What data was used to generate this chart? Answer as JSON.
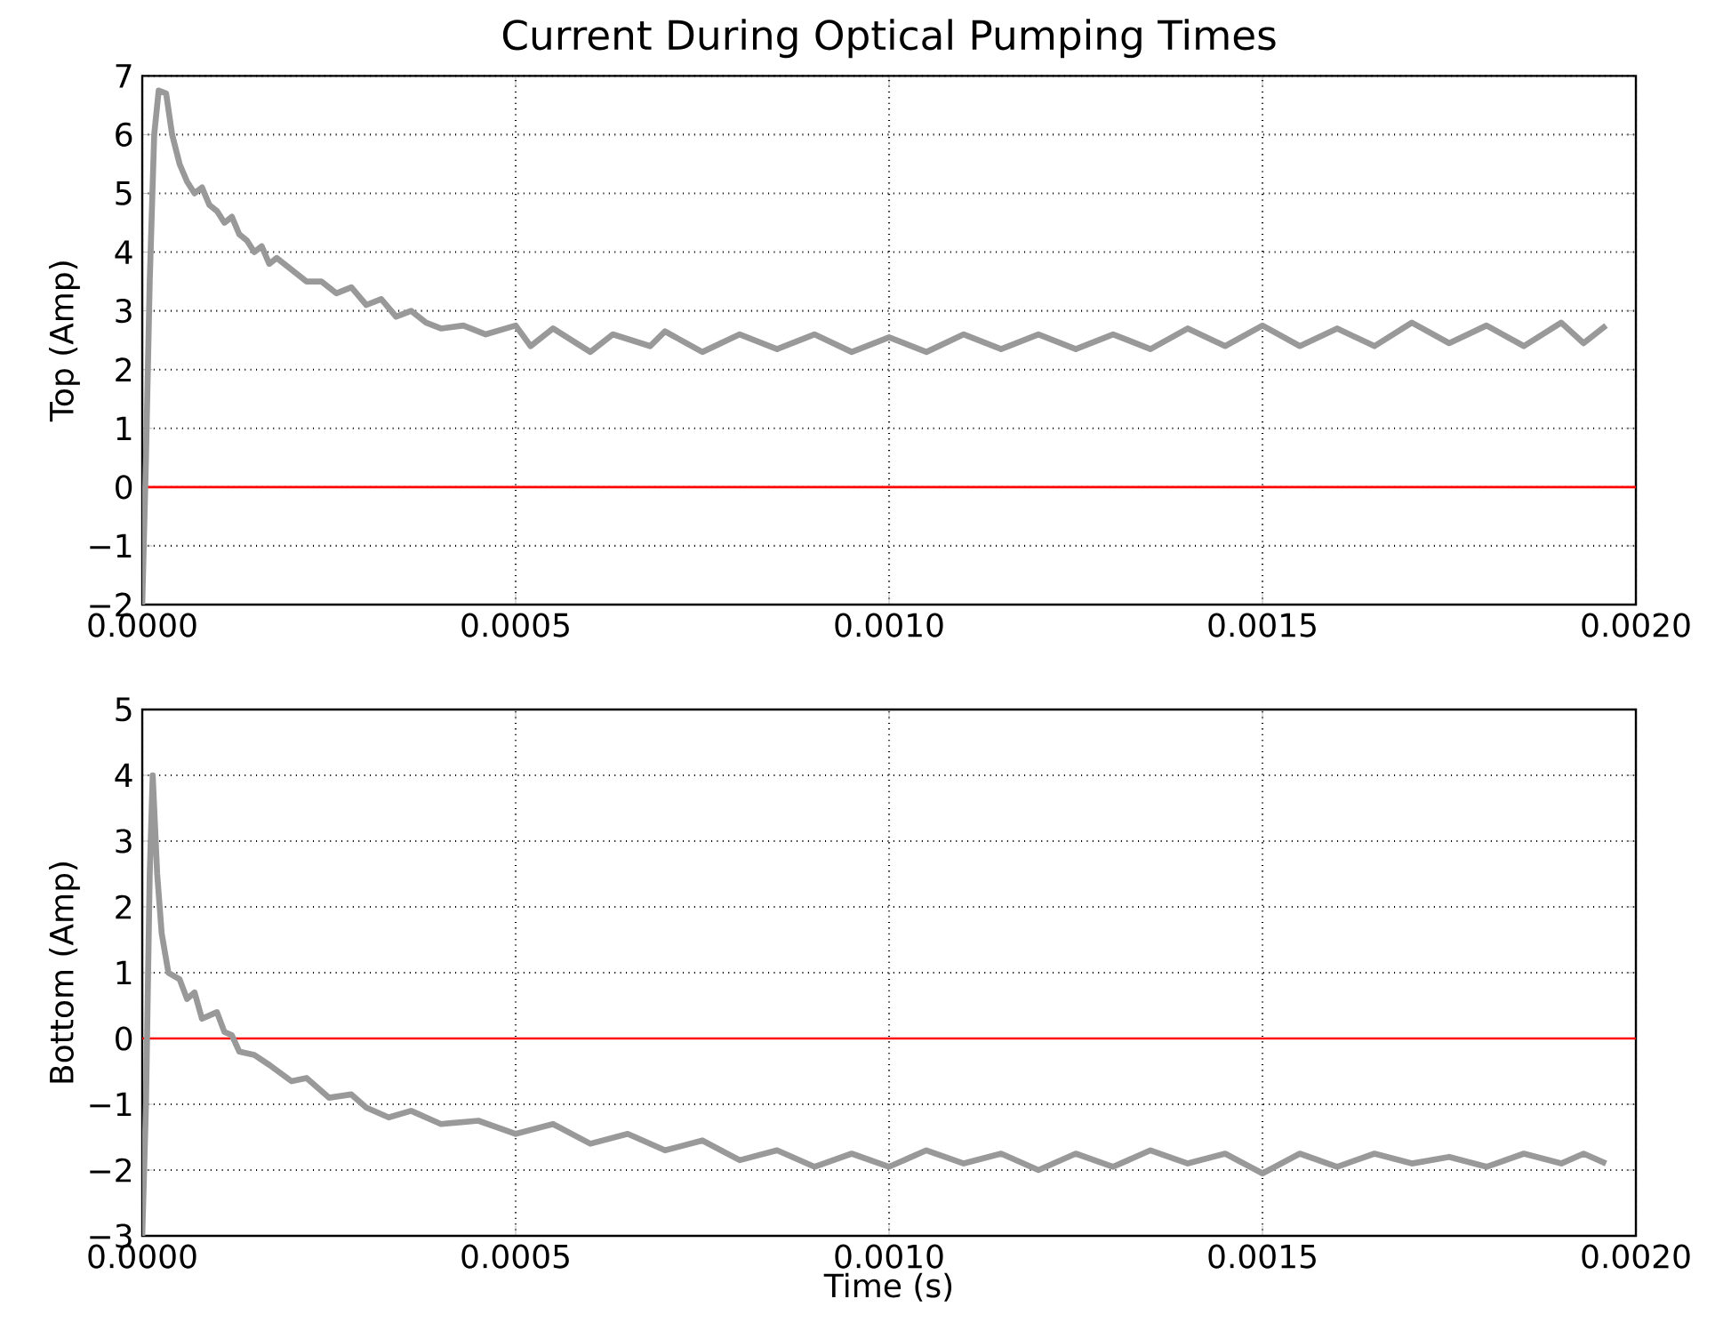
{
  "chart_data": [
    {
      "type": "line",
      "title": "Current During Optical Pumping Times",
      "ylabel": "Top (Amp)",
      "xlim": [
        0,
        0.002
      ],
      "ylim": [
        -2,
        7
      ],
      "xticks": [
        {
          "value": 0,
          "label": "0.0000"
        },
        {
          "value": 0.0005,
          "label": "0.0005"
        },
        {
          "value": 0.001,
          "label": "0.0010"
        },
        {
          "value": 0.0015,
          "label": "0.0015"
        },
        {
          "value": 0.002,
          "label": "0.0020"
        }
      ],
      "yticks": [
        {
          "value": -2,
          "label": "−2"
        },
        {
          "value": -1,
          "label": "−1"
        },
        0,
        1,
        2,
        3,
        4,
        5,
        6,
        7
      ],
      "grid": true,
      "ref_lines": [
        {
          "axis": "y",
          "value": 0,
          "color": "#ff0000"
        }
      ],
      "series": [
        {
          "color": "#999999",
          "x": [
            0,
            5e-06,
            1e-05,
            1.6e-05,
            2.2e-05,
            3.2e-05,
            4e-05,
            5e-05,
            6e-05,
            7e-05,
            8e-05,
            9e-05,
            0.0001,
            0.00011,
            0.00012,
            0.00013,
            0.00014,
            0.00015,
            0.00016,
            0.00017,
            0.00018,
            0.0002,
            0.00022,
            0.00024,
            0.00026,
            0.00028,
            0.0003,
            0.00032,
            0.00034,
            0.00036,
            0.00038,
            0.0004,
            0.00043,
            0.00046,
            0.0005,
            0.00052,
            0.00055,
            0.0006,
            0.00063,
            0.00068,
            0.0007,
            0.00075,
            0.0008,
            0.00085,
            0.0009,
            0.00095,
            0.001,
            0.00105,
            0.0011,
            0.00115,
            0.0012,
            0.00125,
            0.0013,
            0.00135,
            0.0014,
            0.00145,
            0.0015,
            0.00155,
            0.0016,
            0.00165,
            0.0017,
            0.00175,
            0.0018,
            0.00185,
            0.0019,
            0.00193,
            0.00196
          ],
          "values": [
            -2,
            0.5,
            3.5,
            6.0,
            6.75,
            6.7,
            6.0,
            5.5,
            5.2,
            5.0,
            5.1,
            4.8,
            4.7,
            4.5,
            4.6,
            4.3,
            4.2,
            4.0,
            4.1,
            3.8,
            3.9,
            3.7,
            3.5,
            3.5,
            3.3,
            3.4,
            3.1,
            3.2,
            2.9,
            3.0,
            2.8,
            2.7,
            2.75,
            2.6,
            2.75,
            2.4,
            2.7,
            2.3,
            2.6,
            2.4,
            2.65,
            2.3,
            2.6,
            2.35,
            2.6,
            2.3,
            2.55,
            2.3,
            2.6,
            2.35,
            2.6,
            2.35,
            2.6,
            2.35,
            2.7,
            2.4,
            2.75,
            2.4,
            2.7,
            2.4,
            2.8,
            2.45,
            2.75,
            2.4,
            2.8,
            2.45,
            2.75
          ]
        }
      ]
    },
    {
      "type": "line",
      "xlabel": "Time (s)",
      "ylabel": "Bottom (Amp)",
      "xlim": [
        0,
        0.002
      ],
      "ylim": [
        -3,
        5
      ],
      "xticks": [
        {
          "value": 0,
          "label": "0.0000"
        },
        {
          "value": 0.0005,
          "label": "0.0005"
        },
        {
          "value": 0.001,
          "label": "0.0010"
        },
        {
          "value": 0.0015,
          "label": "0.0015"
        },
        {
          "value": 0.002,
          "label": "0.0020"
        }
      ],
      "yticks": [
        {
          "value": -3,
          "label": "−3"
        },
        {
          "value": -2,
          "label": "−2"
        },
        {
          "value": -1,
          "label": "−1"
        },
        0,
        1,
        2,
        3,
        4,
        5
      ],
      "grid": true,
      "ref_lines": [
        {
          "axis": "y",
          "value": 0,
          "color": "#ff0000"
        }
      ],
      "series": [
        {
          "color": "#999999",
          "x": [
            0,
            5e-06,
            1e-05,
            1.4e-05,
            2e-05,
            2.6e-05,
            3.5e-05,
            5e-05,
            6e-05,
            7e-05,
            8e-05,
            0.0001,
            0.00011,
            0.00012,
            0.00013,
            0.00015,
            0.00017,
            0.0002,
            0.00022,
            0.00025,
            0.00028,
            0.0003,
            0.00033,
            0.00036,
            0.0004,
            0.00045,
            0.0005,
            0.00055,
            0.0006,
            0.00065,
            0.0007,
            0.00075,
            0.0008,
            0.00085,
            0.0009,
            0.00095,
            0.001,
            0.00105,
            0.0011,
            0.00115,
            0.0012,
            0.00125,
            0.0013,
            0.00135,
            0.0014,
            0.00145,
            0.0015,
            0.00155,
            0.0016,
            0.00165,
            0.0017,
            0.00175,
            0.0018,
            0.00185,
            0.0019,
            0.00193,
            0.00196
          ],
          "values": [
            -3,
            -1,
            2.5,
            4.0,
            2.5,
            1.6,
            1.0,
            0.9,
            0.6,
            0.7,
            0.3,
            0.4,
            0.1,
            0.05,
            -0.2,
            -0.25,
            -0.4,
            -0.65,
            -0.6,
            -0.9,
            -0.85,
            -1.05,
            -1.2,
            -1.1,
            -1.3,
            -1.25,
            -1.45,
            -1.3,
            -1.6,
            -1.45,
            -1.7,
            -1.55,
            -1.85,
            -1.7,
            -1.95,
            -1.75,
            -1.95,
            -1.7,
            -1.9,
            -1.75,
            -2.0,
            -1.75,
            -1.95,
            -1.7,
            -1.9,
            -1.75,
            -2.05,
            -1.75,
            -1.95,
            -1.75,
            -1.9,
            -1.8,
            -1.95,
            -1.75,
            -1.9,
            -1.75,
            -1.9
          ]
        }
      ]
    }
  ]
}
